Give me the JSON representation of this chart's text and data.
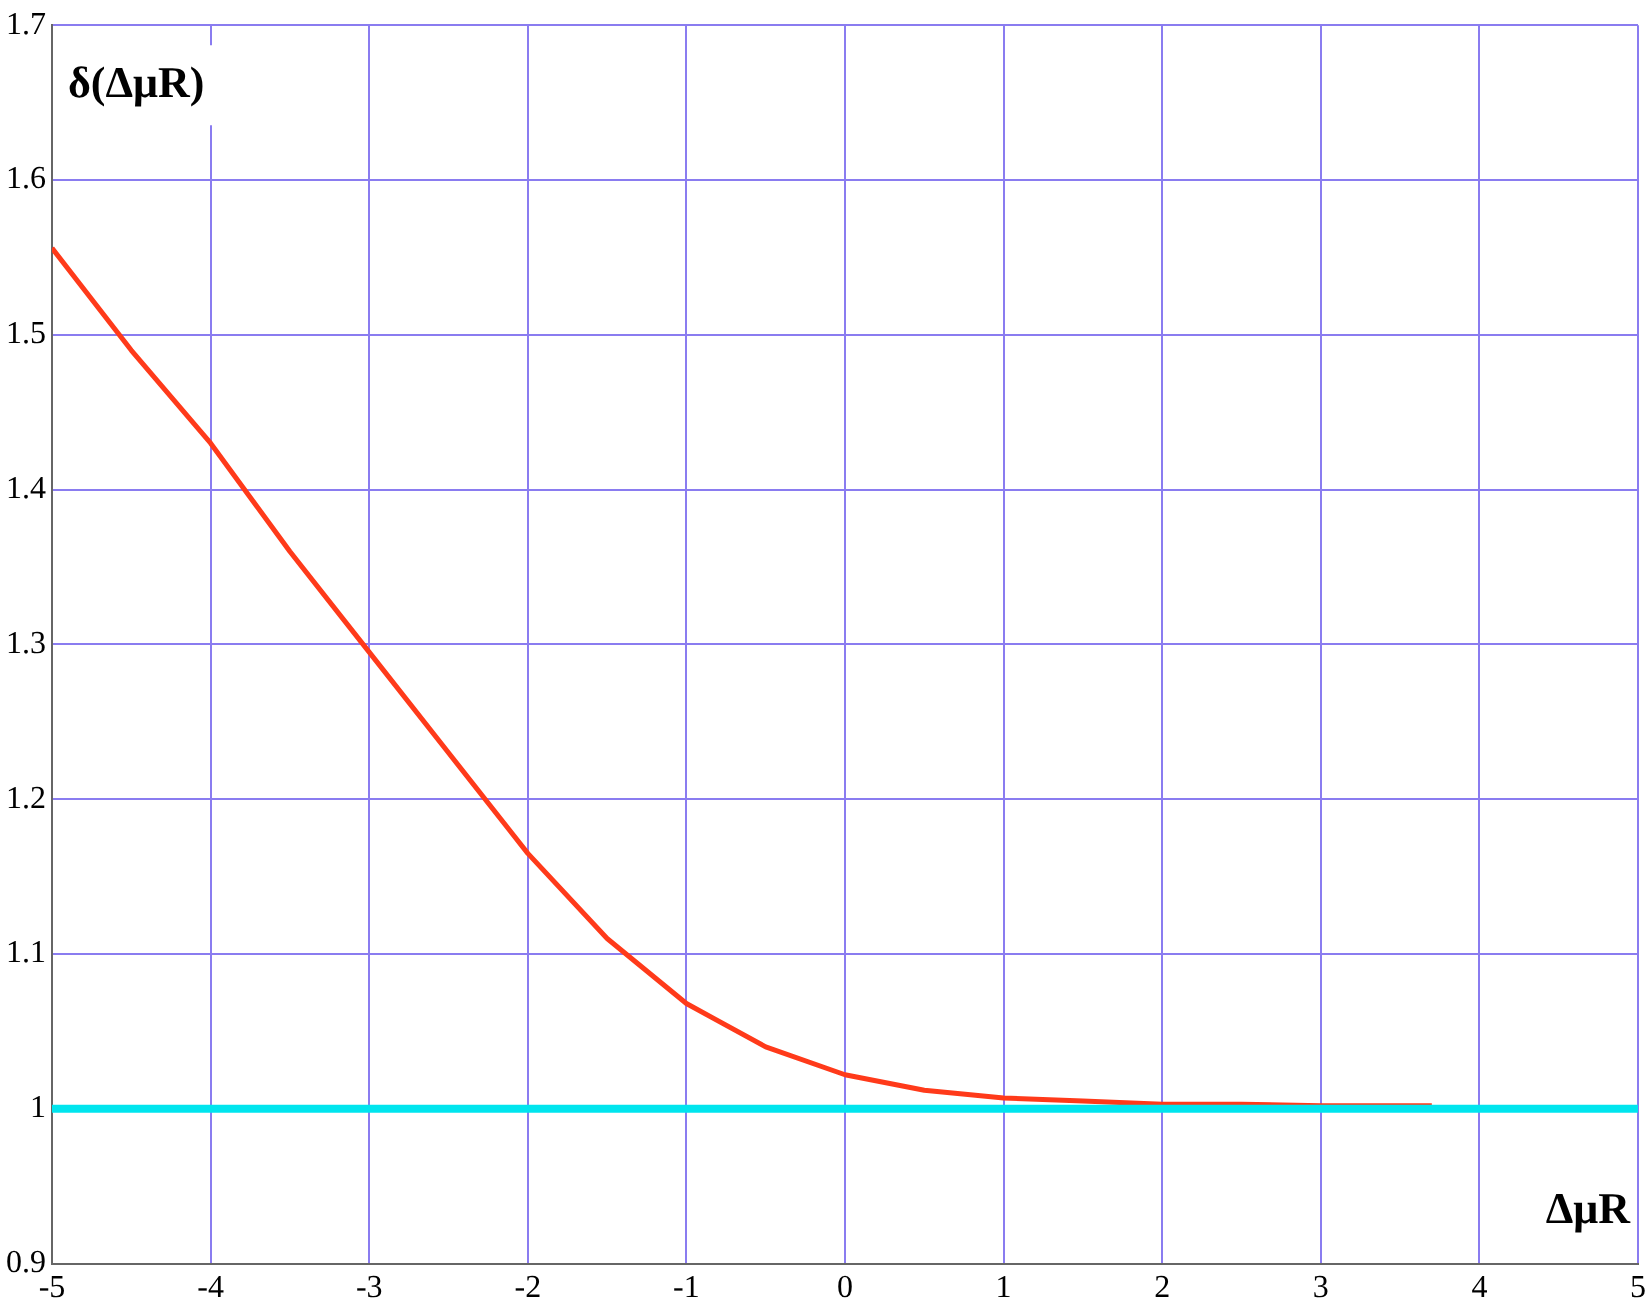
{
  "chart_data": {
    "type": "line",
    "xlabel": "ΔμR",
    "ylabel": "δ(ΔμR)",
    "series": [
      {
        "color": "#ff3a1a",
        "x": [
          -5,
          -4.5,
          -4,
          -3.5,
          -3,
          -2.5,
          -2,
          -1.5,
          -1,
          -0.5,
          0,
          0.5,
          1,
          1.5,
          2,
          2.5,
          3,
          3.7
        ],
        "values": [
          1.556,
          1.49,
          1.43,
          1.36,
          1.295,
          1.23,
          1.165,
          1.11,
          1.068,
          1.04,
          1.022,
          1.012,
          1.007,
          1.005,
          1.003,
          1.003,
          1.002,
          1.002
        ]
      }
    ],
    "ref_lines": [
      {
        "axis": "y",
        "value": 1,
        "color": "#00e5ee"
      }
    ],
    "xlim": [
      -5,
      5
    ],
    "xticks": [
      -5,
      -4,
      -3,
      -2,
      -1,
      0,
      1,
      2,
      3,
      4,
      5
    ],
    "ylim": [
      0.9,
      1.7
    ],
    "yticks": [
      0.9,
      1.1,
      1.2,
      1.3,
      1.4,
      1.5,
      1.6,
      1.7,
      1
    ],
    "grid": true,
    "legend": false,
    "marker": "none",
    "line_style": "solid"
  }
}
